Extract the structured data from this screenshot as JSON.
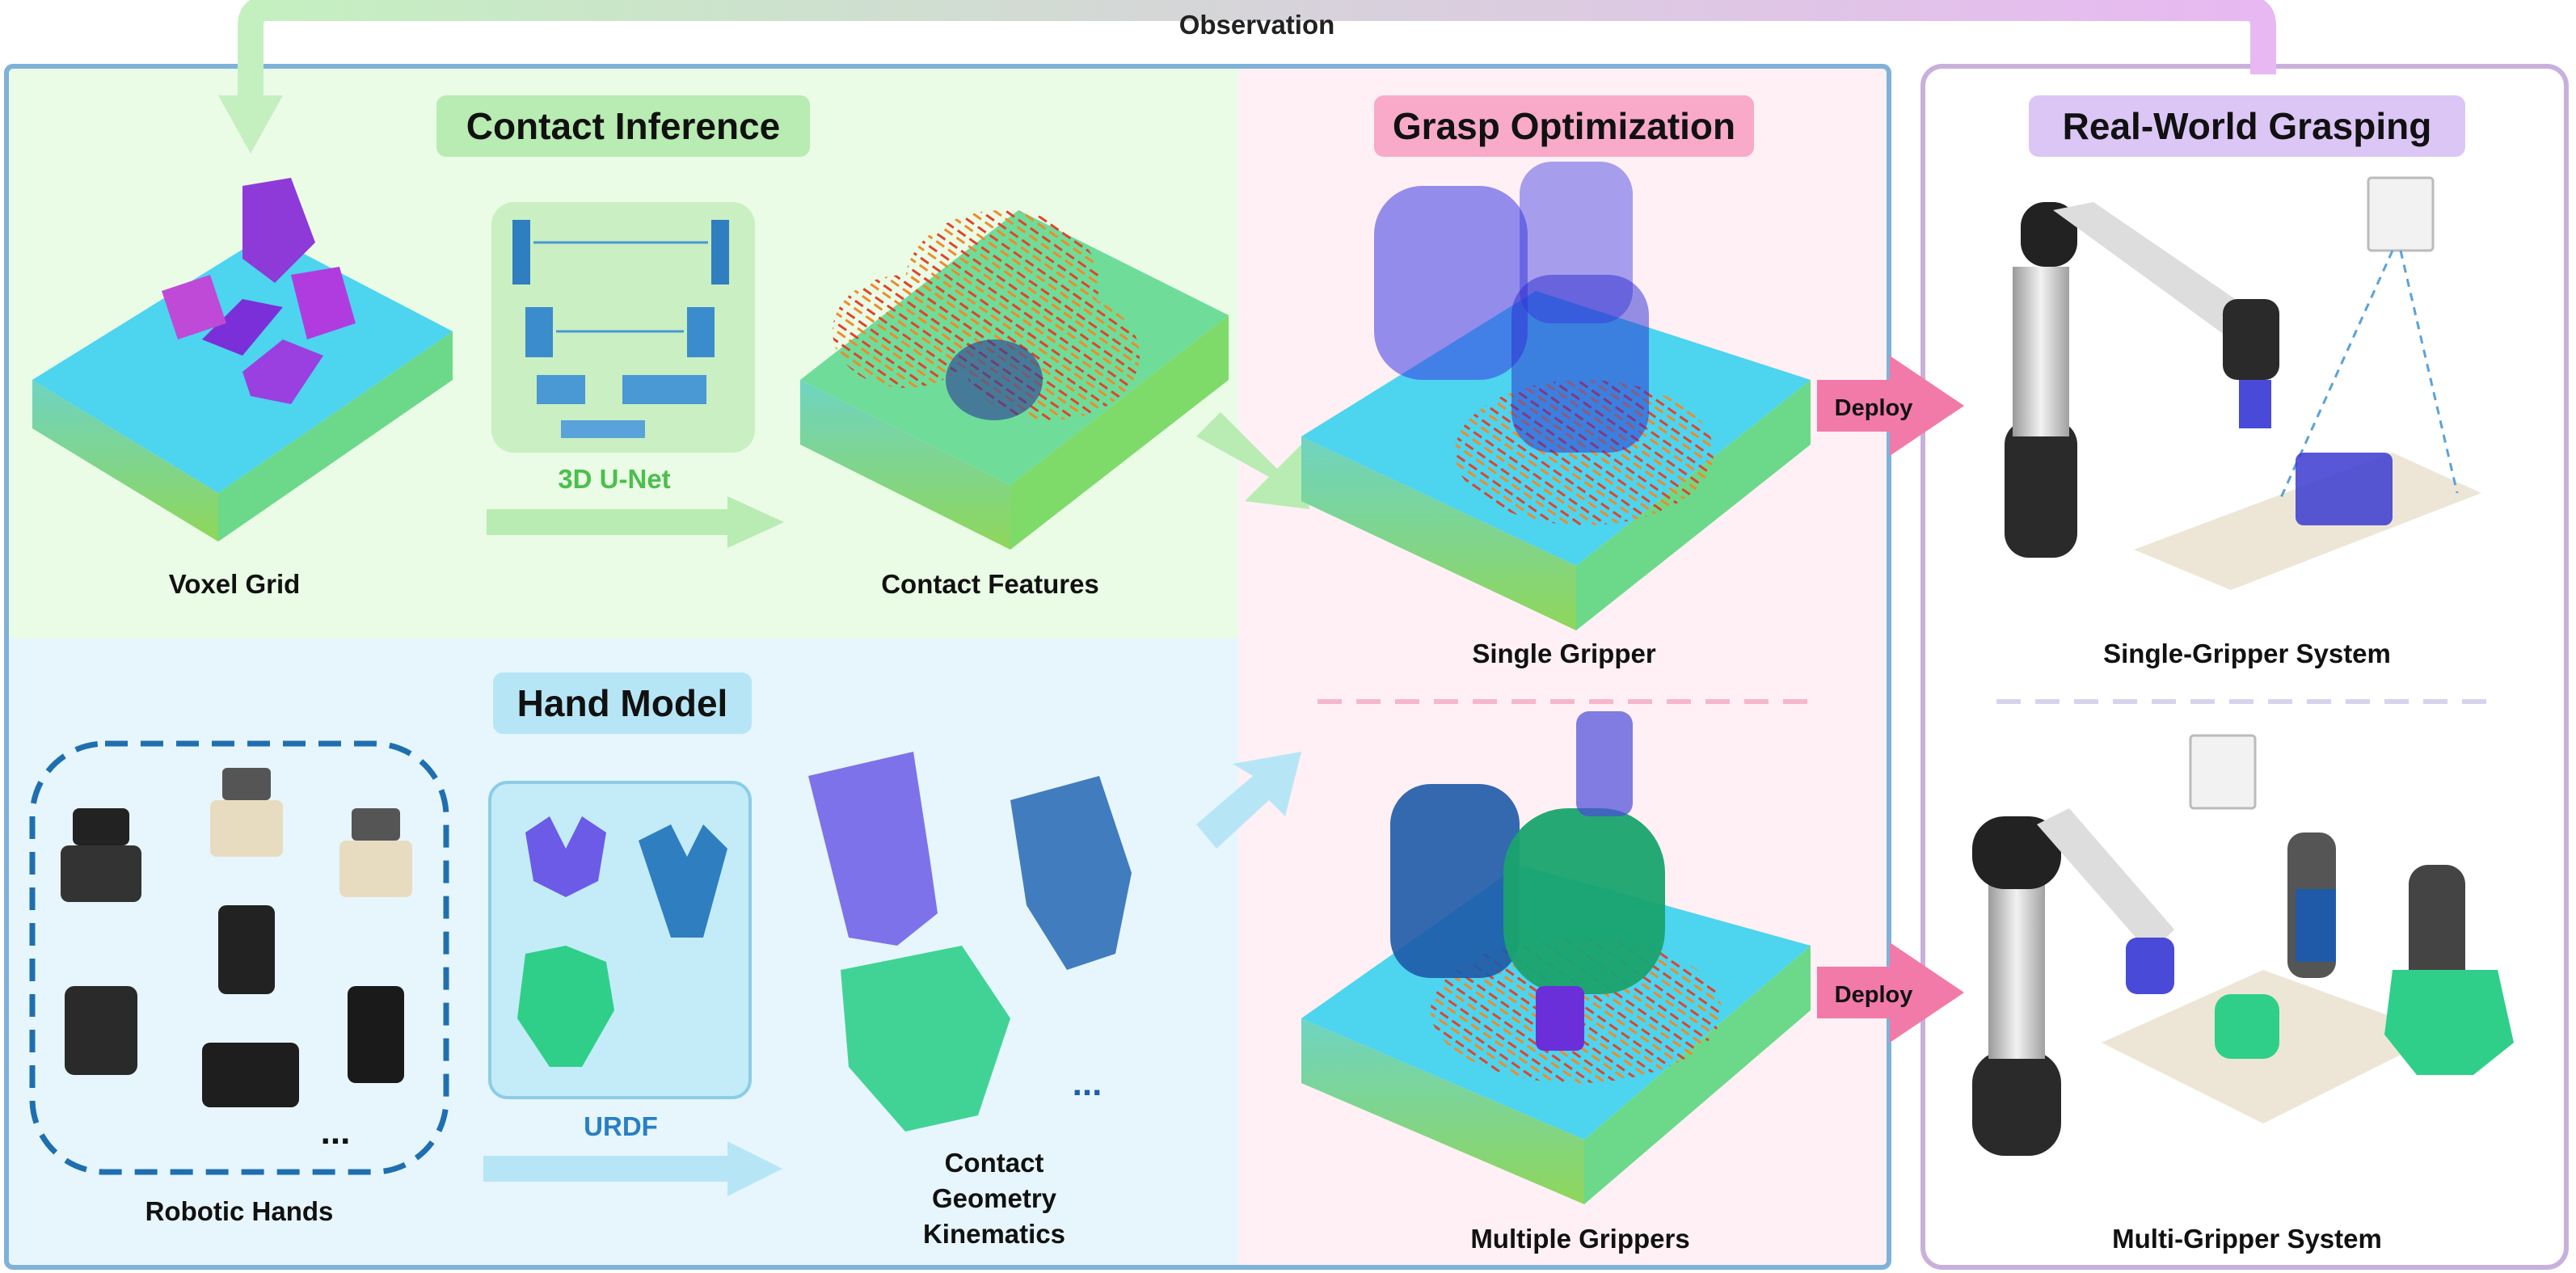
{
  "observation_label": "Observation",
  "sections": {
    "contact_inference": {
      "title": "Contact Inference",
      "voxel_grid_label": "Voxel Grid",
      "network_label": "3D U-Net",
      "contact_features_label": "Contact Features"
    },
    "hand_model": {
      "title": "Hand Model",
      "robotic_hands_label": "Robotic Hands",
      "urdf_label": "URDF",
      "contact_label_lines": [
        "Contact",
        "Geometry",
        "Kinematics"
      ],
      "more_hands": "...",
      "more_models": "..."
    },
    "grasp_optimization": {
      "title": "Grasp Optimization",
      "single_label": "Single Gripper",
      "multiple_label": "Multiple Grippers"
    },
    "real_world": {
      "title": "Real-World Grasping",
      "single_system_label": "Single-Gripper System",
      "multi_system_label": "Multi-Gripper System"
    }
  },
  "deploy_labels": [
    "Deploy",
    "Deploy"
  ],
  "colors": {
    "outer_border": "#7fb2d9",
    "contact_bg": "#eafbe6",
    "hand_bg": "#e6f6fc",
    "grasp_bg": "#fff0f6",
    "real_border": "#c9b0dc",
    "contact_badge": "#b8ecb2",
    "hand_badge": "#b6e6f6",
    "grasp_badge": "#f8aac8",
    "real_badge": "#dcc6f6",
    "unet_label": "#4cbf4c",
    "urdf_label": "#2a7fc4",
    "deploy_arrow": "#f27aa8"
  }
}
